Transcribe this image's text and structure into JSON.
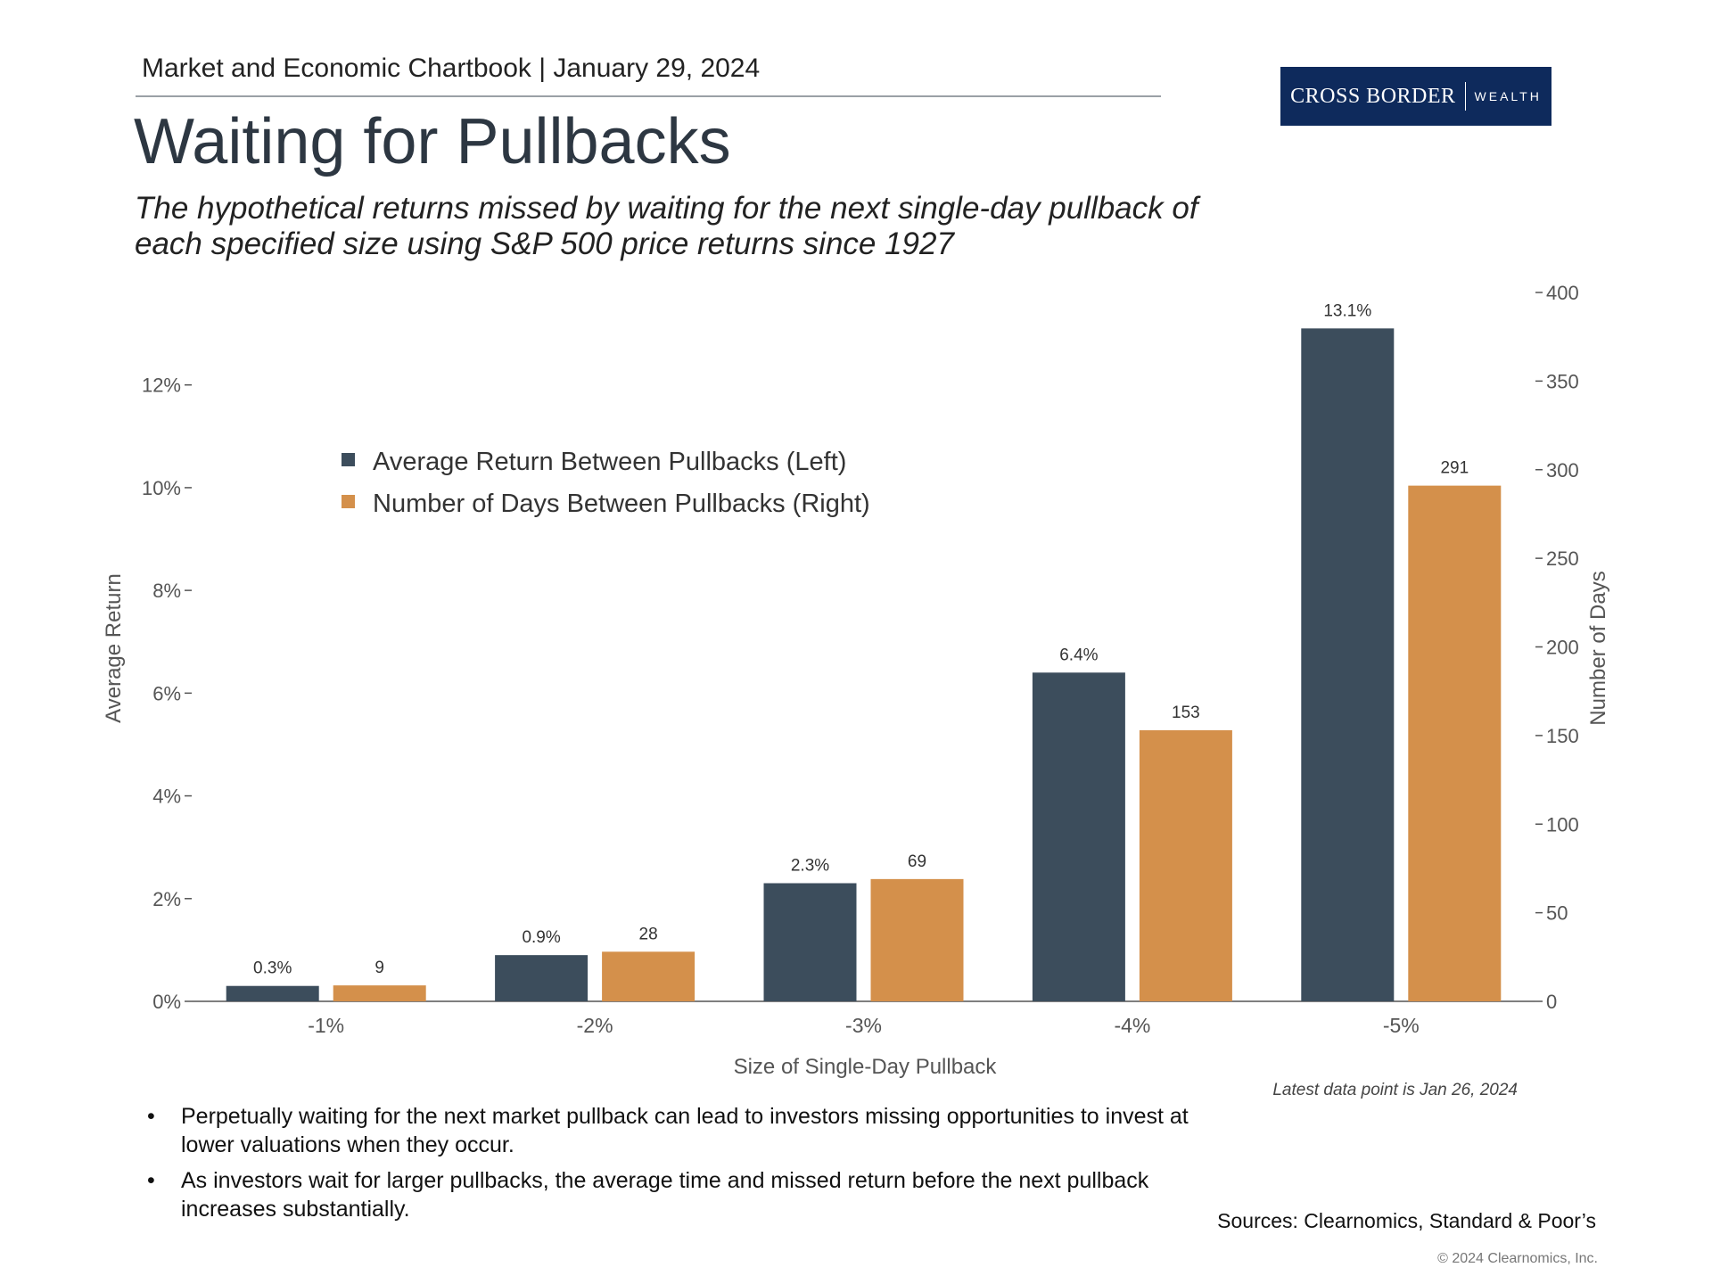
{
  "header": {
    "text": "Market and Economic Chartbook | January 29, 2024"
  },
  "logo": {
    "main": "CROSS BORDER",
    "sub": "WEALTH"
  },
  "title": "Waiting for Pullbacks",
  "subtitle": "The hypothetical returns missed by waiting for the next single-day pullback of each specified size using S&P 500 price returns since 1927",
  "colors": {
    "series1": "#3c4d5c",
    "series2": "#d4904b",
    "axis": "#555555",
    "logo_bg": "#0e2a5c"
  },
  "chart_data": {
    "type": "bar",
    "categories": [
      "-1%",
      "-2%",
      "-3%",
      "-4%",
      "-5%"
    ],
    "series": [
      {
        "name": "Average Return Between Pullbacks (Left)",
        "axis": "left",
        "values": [
          0.3,
          0.9,
          2.3,
          6.4,
          13.1
        ],
        "labels": [
          "0.3%",
          "0.9%",
          "2.3%",
          "6.4%",
          "13.1%"
        ]
      },
      {
        "name": "Number of Days Between Pullbacks (Right)",
        "axis": "right",
        "values": [
          9,
          28,
          69,
          153,
          291
        ],
        "labels": [
          "9",
          "28",
          "69",
          "153",
          "291"
        ]
      }
    ],
    "xlabel": "Size of Single-Day Pullback",
    "ylabel_left": "Average Return",
    "ylabel_right": "Number of Days",
    "ylim_left": [
      0,
      13.8
    ],
    "ylim_right": [
      0,
      400
    ],
    "left_ticks": [
      0,
      2,
      4,
      6,
      8,
      10,
      12
    ],
    "left_tick_labels": [
      "0%",
      "2%",
      "4%",
      "6%",
      "8%",
      "10%",
      "12%"
    ],
    "right_ticks": [
      0,
      50,
      100,
      150,
      200,
      250,
      300,
      350,
      400
    ],
    "right_tick_labels": [
      "0",
      "50",
      "100",
      "150",
      "200",
      "250",
      "300",
      "350",
      "400"
    ],
    "legend_position": "upper-left",
    "grid": false
  },
  "notes": {
    "latest": "Latest data point is Jan 26, 2024",
    "bullets": [
      "Perpetually waiting for the next market pullback can lead to investors missing opportunities to invest at lower valuations when they occur.",
      "As investors wait for larger pullbacks, the average time and missed return before the next pullback increases substantially."
    ],
    "sources": "Sources: Clearnomics, Standard & Poor’s",
    "copyright": "© 2024 Clearnomics, Inc."
  }
}
